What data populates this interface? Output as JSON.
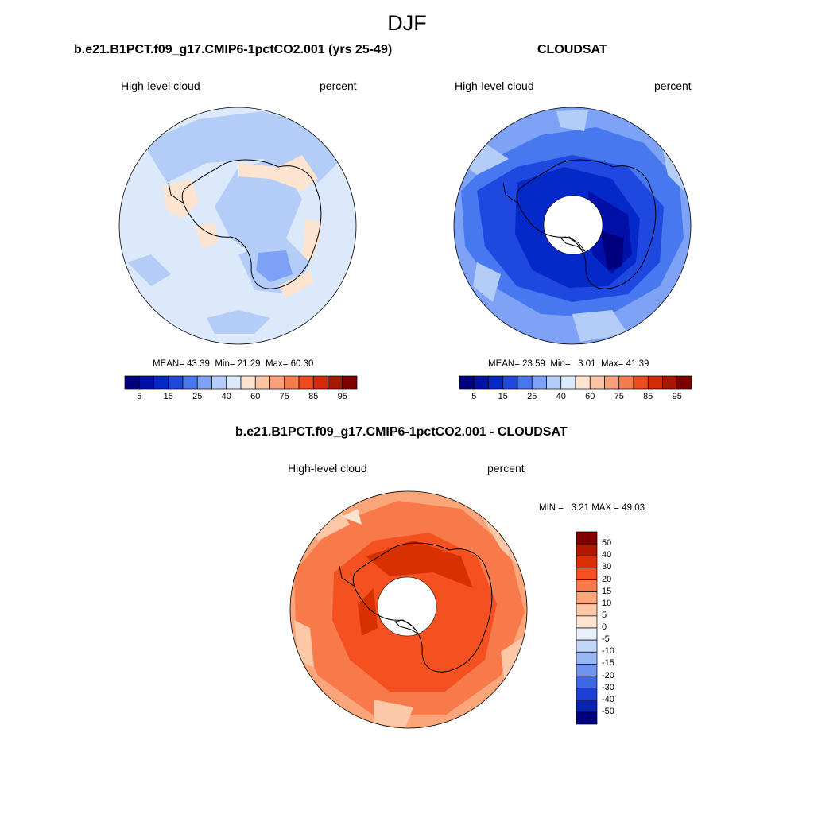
{
  "main_title": "DJF",
  "panels": [
    {
      "title": "b.e21.B1PCT.f09_g17.CMIP6-1pctCO2.001 (yrs 25-49)",
      "left_label": "High-level cloud",
      "right_label": "percent",
      "stats": {
        "mean_label": "MEAN=",
        "mean": "43.39",
        "min_label": "Min=",
        "min": "21.29",
        "max_label": "Max=",
        "max": "60.30"
      },
      "colorbar_ticks": [
        "5",
        "15",
        "25",
        "40",
        "60",
        "75",
        "85",
        "95"
      ]
    },
    {
      "title": "CLOUDSAT",
      "left_label": "High-level cloud",
      "right_label": "percent",
      "stats": {
        "mean_label": "MEAN=",
        "mean": "23.59",
        "min_label": "Min=",
        "min": "3.01",
        "max_label": "Max=",
        "max": "41.39"
      },
      "colorbar_ticks": [
        "5",
        "15",
        "25",
        "40",
        "60",
        "75",
        "85",
        "95"
      ]
    },
    {
      "title": "b.e21.B1PCT.f09_g17.CMIP6-1pctCO2.001 - CLOUDSAT",
      "left_label": "High-level cloud",
      "right_label": "percent",
      "stats": {
        "min_label": "MIN =",
        "min": "3.21",
        "max_label": "MAX =",
        "max": "49.03"
      },
      "colorbar_ticks": [
        "50",
        "40",
        "30",
        "20",
        "15",
        "10",
        "5",
        "0",
        "-5",
        "-10",
        "-15",
        "-20",
        "-30",
        "-40",
        "-50"
      ]
    }
  ],
  "colors": {
    "abs_scale": [
      "#00007f",
      "#0010a8",
      "#0528c8",
      "#1e48e0",
      "#4878f0",
      "#7ea2f5",
      "#b4cdf8",
      "#dce9fb",
      "#fde4d0",
      "#fcc4a6",
      "#fba07c",
      "#f87a50",
      "#f04a20",
      "#d42a0a",
      "#a81600",
      "#800000"
    ],
    "diff_scale": [
      "#800000",
      "#b01800",
      "#d83000",
      "#f45020",
      "#f87a4a",
      "#fba57a",
      "#fdc8a8",
      "#fde4d0",
      "#e8f0fb",
      "#c2d6f8",
      "#98b6f3",
      "#6e94ee",
      "#3e68e4",
      "#1c40d4",
      "#0a22b0",
      "#00007f"
    ]
  }
}
